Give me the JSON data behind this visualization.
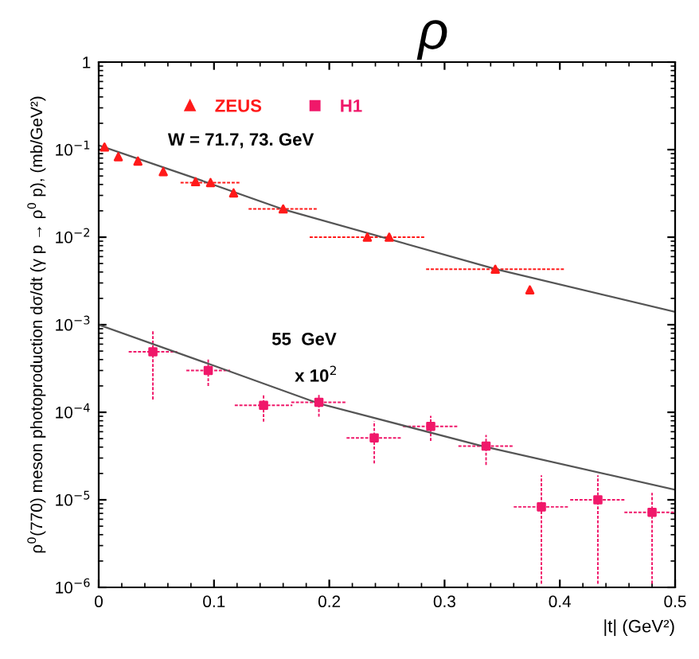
{
  "chart_data": {
    "type": "scatter",
    "title": "ρ",
    "xlabel": "|t| (GeV²)",
    "ylabel": "ρ$^{0}$(770) meson photoproduction dσ/dt (γ p → ρ$^{0}$ p), (mb/GeV²)",
    "log": "y",
    "xlim": [
      0,
      0.5
    ],
    "xticks": [
      0,
      0.1,
      0.2,
      0.3,
      0.4,
      0.5
    ],
    "ylim": [
      1e-06,
      1
    ],
    "yticks": [
      {
        "value": 1e-06,
        "label": "10$^{−6}$"
      },
      {
        "value": 1e-05,
        "label": "10$^{−5}$"
      },
      {
        "value": 0.0001,
        "label": "10$^{−4}$"
      },
      {
        "value": 0.001,
        "label": "10$^{−3}$"
      },
      {
        "value": 0.01,
        "label": "10$^{−2}$"
      },
      {
        "value": 0.1,
        "label": "10$^{−1}$"
      },
      {
        "value": 1,
        "label": "1"
      }
    ],
    "legend": "top left",
    "grid": false,
    "annotations": [
      "W = 71.7, 73. GeV",
      "55  GeV",
      "x 10$^{2}$"
    ],
    "series": [
      {
        "name": "ZEUS",
        "color": "#ff1a1a",
        "marker": "triangle",
        "x": [
          0.005,
          0.017,
          0.034,
          0.056,
          0.084,
          0.097,
          0.117,
          0.16,
          0.233,
          0.252,
          0.344,
          0.374
        ],
        "values": [
          0.107,
          0.083,
          0.074,
          0.056,
          0.043,
          0.042,
          0.032,
          0.021,
          0.01,
          0.01,
          0.0043,
          0.0025
        ],
        "xerrors": [
          null,
          null,
          null,
          null,
          null,
          0.026,
          null,
          0.03,
          0.05,
          null,
          0.06,
          null
        ]
      },
      {
        "name": "H1",
        "color": "#f0186a",
        "marker": "square",
        "x": [
          0.047,
          0.095,
          0.143,
          0.191,
          0.239,
          0.288,
          0.336,
          0.384,
          0.433,
          0.48
        ],
        "values": [
          0.00049,
          0.0003,
          0.00012,
          0.00013,
          5.1e-05,
          6.9e-05,
          4.1e-05,
          8.3e-06,
          1e-05,
          7.2e-06
        ],
        "errors": [
          [
            0.00014,
            0.00085
          ],
          [
            0.0002,
            0.0004
          ],
          [
            7.8e-05,
            0.00016
          ],
          [
            8.9e-05,
            0.00016
          ],
          [
            2.6e-05,
            7.9e-05
          ],
          [
            4.7e-05,
            9.1e-05
          ],
          [
            2.5e-05,
            5.5e-05
          ],
          [
            1.1e-06,
            1.9e-05
          ],
          [
            1.1e-06,
            1.9e-05
          ],
          [
            1.1e-06,
            1.2e-05
          ]
        ],
        "xerrors": [
          0.021,
          0.019,
          0.025,
          0.024,
          0.024,
          0.024,
          0.024,
          0.024,
          0.024,
          0.024
        ]
      },
      {
        "type": "line",
        "color": "#555555",
        "x": [
          0,
          0.08,
          0.159,
          0.345,
          0.5
        ],
        "values": [
          0.112,
          0.049,
          0.021,
          0.0043,
          0.0014
        ]
      },
      {
        "type": "line",
        "color": "#555555",
        "x": [
          0,
          0.1,
          0.191,
          0.333,
          0.5
        ],
        "values": [
          0.001,
          0.00034,
          0.000126,
          4.1e-05,
          1.3e-05
        ]
      }
    ]
  }
}
